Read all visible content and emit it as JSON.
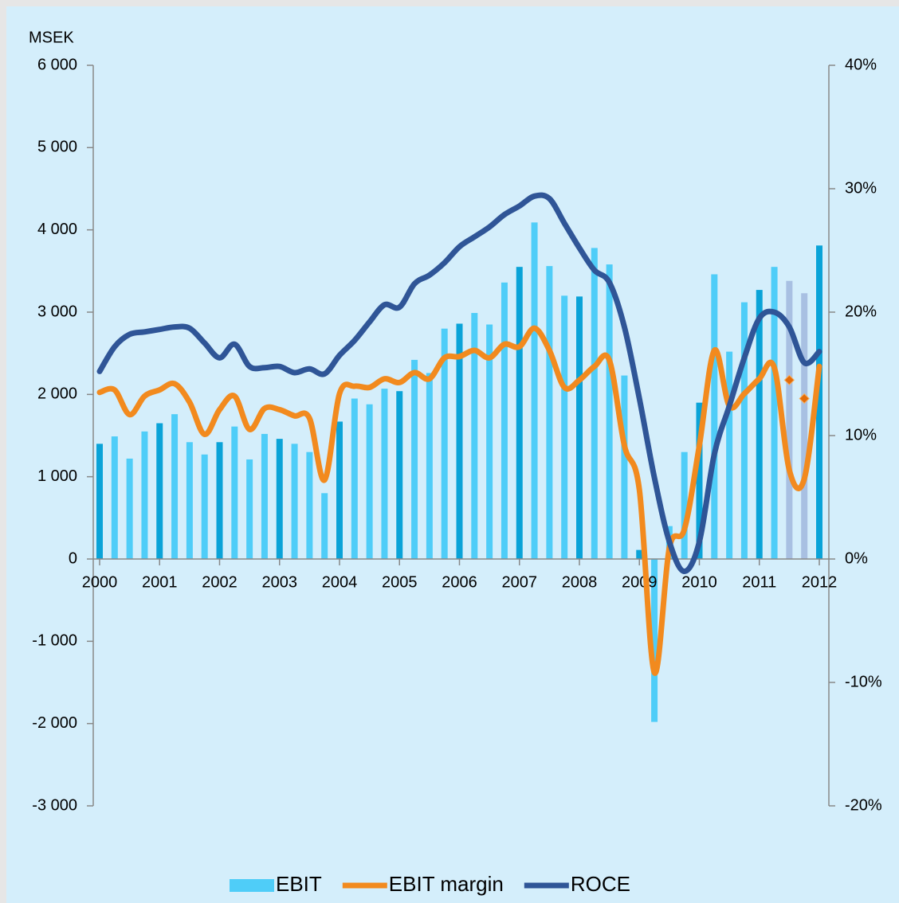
{
  "chart_data": {
    "type": "bar-line",
    "y_axis_title": "MSEK",
    "categories": [
      "2000",
      null,
      null,
      null,
      "2001",
      null,
      null,
      null,
      "2002",
      null,
      null,
      null,
      "2003",
      null,
      null,
      null,
      "2004",
      null,
      null,
      null,
      "2005",
      null,
      null,
      null,
      "2006",
      null,
      null,
      null,
      "2007",
      null,
      null,
      null,
      "2008",
      null,
      null,
      null,
      "2009",
      null,
      null,
      null,
      "2010",
      null,
      null,
      null,
      "2011",
      null,
      null,
      null,
      "2012"
    ],
    "series": [
      {
        "name": "EBIT",
        "type": "bar",
        "color": "#4fcdf8",
        "colors": [
          "#0aa3d8",
          "#4fcdf8",
          "#4fcdf8",
          "#4fcdf8",
          "#0aa3d8",
          "#4fcdf8",
          "#4fcdf8",
          "#4fcdf8",
          "#0aa3d8",
          "#4fcdf8",
          "#4fcdf8",
          "#4fcdf8",
          "#0aa3d8",
          "#4fcdf8",
          "#4fcdf8",
          "#4fcdf8",
          "#0aa3d8",
          "#4fcdf8",
          "#4fcdf8",
          "#4fcdf8",
          "#0aa3d8",
          "#4fcdf8",
          "#4fcdf8",
          "#4fcdf8",
          "#0aa3d8",
          "#4fcdf8",
          "#4fcdf8",
          "#4fcdf8",
          "#0aa3d8",
          "#4fcdf8",
          "#4fcdf8",
          "#4fcdf8",
          "#0aa3d8",
          "#4fcdf8",
          "#4fcdf8",
          "#4fcdf8",
          "#0aa3d8",
          "#4fcdf8",
          "#4fcdf8",
          "#4fcdf8",
          "#0aa3d8",
          "#4fcdf8",
          "#4fcdf8",
          "#4fcdf8",
          "#0aa3d8",
          "#4fcdf8",
          "#a8c0e2",
          "#a8c0e2",
          "#0aa3d8"
        ],
        "values": [
          1400,
          1490,
          1220,
          1550,
          1650,
          1760,
          1420,
          1270,
          1420,
          1610,
          1210,
          1520,
          1460,
          1400,
          1300,
          800,
          1670,
          1950,
          1880,
          2070,
          2040,
          2420,
          2260,
          2800,
          2860,
          2990,
          2850,
          3360,
          3550,
          4090,
          3560,
          3200,
          3190,
          3780,
          3580,
          2230,
          110,
          -1980,
          400,
          1300,
          1900,
          3460,
          2520,
          3120,
          3270,
          3550,
          3380,
          3230,
          3810
        ]
      },
      {
        "name": "EBIT margin",
        "type": "line",
        "axis": "y2",
        "color": "#f28a1e",
        "values": [
          13.5,
          13.7,
          11.7,
          13.2,
          13.7,
          14.2,
          12.7,
          10.1,
          12.1,
          13.2,
          10.5,
          12.2,
          12.1,
          11.6,
          11.4,
          6.4,
          13.4,
          14.0,
          13.9,
          14.6,
          14.3,
          15.1,
          14.6,
          16.3,
          16.4,
          16.9,
          16.3,
          17.4,
          17.2,
          18.7,
          16.9,
          13.9,
          14.5,
          15.6,
          16.1,
          9.2,
          5.6,
          -9.2,
          0.9,
          2.4,
          9.2,
          16.9,
          12.4,
          13.4,
          14.6,
          15.5,
          7.2,
          6.5,
          15.6
        ]
      },
      {
        "name": "ROCE",
        "type": "line",
        "axis": "y2",
        "color": "#2f5597",
        "values": [
          15.2,
          17.2,
          18.2,
          18.4,
          18.6,
          18.8,
          18.7,
          17.5,
          16.3,
          17.4,
          15.6,
          15.5,
          15.6,
          15.1,
          15.4,
          15.0,
          16.5,
          17.7,
          19.2,
          20.6,
          20.4,
          22.3,
          23.0,
          24.0,
          25.3,
          26.1,
          26.9,
          27.9,
          28.6,
          29.4,
          29.2,
          27.2,
          25.2,
          23.4,
          22.4,
          18.8,
          13.0,
          6.6,
          1.4,
          -1.0,
          1.4,
          8.5,
          12.4,
          16.3,
          19.5,
          20.0,
          18.8,
          15.9,
          16.8
        ]
      }
    ],
    "markers": {
      "color": "#e36c09",
      "axis": "y2",
      "values": [
        null,
        null,
        null,
        null,
        null,
        null,
        null,
        null,
        null,
        null,
        null,
        null,
        null,
        null,
        null,
        null,
        null,
        null,
        null,
        null,
        null,
        null,
        null,
        null,
        null,
        null,
        null,
        null,
        null,
        null,
        null,
        null,
        null,
        null,
        null,
        null,
        null,
        null,
        null,
        null,
        null,
        null,
        null,
        null,
        null,
        null,
        14.5,
        13.0,
        null
      ]
    },
    "ylim": [
      -3000,
      6000
    ],
    "yticks": [
      {
        "value": -3000,
        "label": "-3 000"
      },
      {
        "value": -2000,
        "label": "-2 000"
      },
      {
        "value": -1000,
        "label": "-1 000"
      },
      0,
      {
        "value": 1000,
        "label": "1 000"
      },
      {
        "value": 2000,
        "label": "2 000"
      },
      {
        "value": 3000,
        "label": "3 000"
      },
      {
        "value": 4000,
        "label": "4 000"
      },
      {
        "value": 5000,
        "label": "5 000"
      },
      {
        "value": 6000,
        "label": "6 000"
      }
    ],
    "y2lim": [
      -20,
      40
    ],
    "y2ticks": [
      {
        "value": -20,
        "label": "-20%"
      },
      {
        "value": -10,
        "label": "-10%"
      },
      {
        "value": 0,
        "label": "0%"
      },
      {
        "value": 10,
        "label": "10%"
      },
      {
        "value": 20,
        "label": "20%"
      },
      {
        "value": 30,
        "label": "30%"
      },
      {
        "value": 40,
        "label": "40%"
      }
    ],
    "legend": "bottom"
  }
}
